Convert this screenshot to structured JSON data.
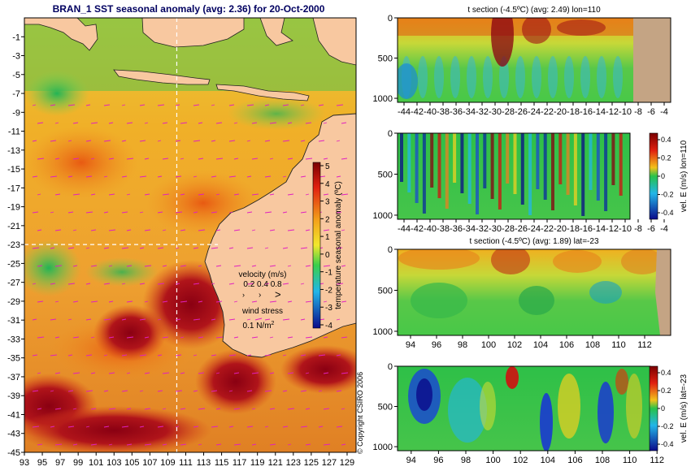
{
  "title": "BRAN_1  SST seasonal anomaly (avg: 2.36) for 20-Oct-2000",
  "copyright": "© Copyright CSIRO 2006",
  "map": {
    "lon_ticks": [
      "93",
      "95",
      "97",
      "99",
      "101",
      "103",
      "105",
      "107",
      "109",
      "111",
      "113",
      "115",
      "117",
      "119",
      "121",
      "123",
      "125",
      "127",
      "129"
    ],
    "lat_ticks": [
      "-1",
      "-3",
      "-5",
      "-7",
      "-9",
      "-11",
      "-13",
      "-15",
      "-17",
      "-19",
      "-21",
      "-23",
      "-25",
      "-27",
      "-29",
      "-31",
      "-33",
      "-35",
      "-37",
      "-39",
      "-41",
      "-43",
      "-45"
    ],
    "lon_range": [
      93,
      130
    ],
    "lat_range": [
      -45,
      1
    ],
    "crosshair": {
      "lon": 110,
      "lat": -23
    },
    "colorbar_label": "temperature seasonal anomaly (ºC)",
    "colorbar_ticks": [
      "5",
      "4",
      "3",
      "2",
      "1",
      "0",
      "-1",
      "-2",
      "-3",
      "-4"
    ],
    "velocity_label": "velocity (m/s)",
    "velocity_scale": "0.2 0.4 0.8",
    "wind_label": "wind stress",
    "wind_scale_value": "0.1 N/m",
    "wind_scale_exp": "2"
  },
  "chart_data": [
    {
      "type": "heatmap",
      "title": "t section (-4.5ºC) (avg: 2.49) lon=110",
      "x_ticks": [
        "-44",
        "-42",
        "-40",
        "-38",
        "-36",
        "-34",
        "-32",
        "-30",
        "-28",
        "-26",
        "-24",
        "-22",
        "-20",
        "-18",
        "-16",
        "-14",
        "-12",
        "-10",
        "-8",
        "-6",
        "-4"
      ],
      "y_ticks": [
        "0",
        "500",
        "1000"
      ],
      "xlim": [
        -45,
        -3
      ],
      "ylim": [
        0,
        1050
      ]
    },
    {
      "type": "heatmap",
      "title": "",
      "x_ticks": [
        "-44",
        "-42",
        "-40",
        "-38",
        "-36",
        "-34",
        "-32",
        "-30",
        "-28",
        "-26",
        "-24",
        "-22",
        "-20",
        "-18",
        "-16",
        "-14",
        "-12",
        "-10",
        "-8",
        "-6",
        "-4"
      ],
      "y_ticks": [
        "0",
        "500",
        "1000"
      ],
      "xlim": [
        -45,
        -3
      ],
      "ylim": [
        0,
        1050
      ],
      "colorbar_ticks": [
        "0.4",
        "0.2",
        "0",
        "-0.2",
        "-0.4"
      ],
      "colorbar_label": "vel. E (m/s) lon=110"
    },
    {
      "type": "heatmap",
      "title": "t section (-4.5ºC) (avg: 1.89) lat=-23",
      "x_ticks": [
        "94",
        "96",
        "98",
        "100",
        "102",
        "104",
        "106",
        "108",
        "110",
        "112"
      ],
      "y_ticks": [
        "0",
        "500",
        "1000"
      ],
      "xlim": [
        93,
        114
      ],
      "ylim": [
        0,
        1050
      ]
    },
    {
      "type": "heatmap",
      "title": "",
      "x_ticks": [
        "94",
        "96",
        "98",
        "100",
        "102",
        "104",
        "106",
        "108",
        "110",
        "112"
      ],
      "y_ticks": [
        "0",
        "500",
        "1000"
      ],
      "xlim": [
        93,
        113
      ],
      "ylim": [
        0,
        1050
      ],
      "colorbar_ticks": [
        "0.4",
        "0.2",
        "0",
        "-0.2",
        "-0.4"
      ],
      "colorbar_label": "vel. E (m/s) lat=-23"
    }
  ]
}
